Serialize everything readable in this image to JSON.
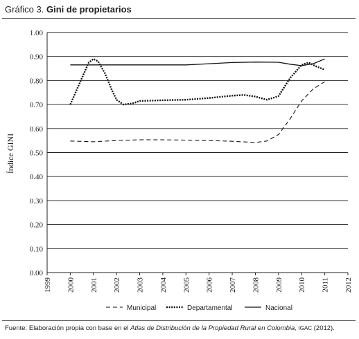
{
  "header": {
    "prefix": "Gráfico 3.",
    "title": "Gini de propietarios"
  },
  "footer": {
    "source_prefix": "Fuente: Elaboración propia con base en el",
    "source_atlas": "Atlas de Distribución de la Propiedad Rural en Colombia,",
    "source_igac": "IGAC",
    "source_suffix": "(2012)."
  },
  "chart_data": {
    "type": "line",
    "title": "Gini de propietarios",
    "xlabel": "",
    "ylabel": "Índice GINI",
    "xlim": [
      1999,
      2012
    ],
    "ylim": [
      0,
      1
    ],
    "xticks": [
      "1999",
      "2000",
      "2001",
      "2002",
      "2003",
      "2004",
      "2005",
      "2006",
      "2007",
      "2008",
      "2009",
      "2010",
      "2011",
      "2012"
    ],
    "yticks": [
      "0.00",
      "0.10",
      "0.20",
      "0.30",
      "0.40",
      "0.50",
      "0.60",
      "0.70",
      "0.80",
      "0.90",
      "1.00"
    ],
    "grid": "horizontal",
    "legend_position": "bottom",
    "series": [
      {
        "name": "Municipal",
        "style": "dashed",
        "x": [
          2000,
          2001,
          2002,
          2003,
          2004,
          2005,
          2006,
          2007,
          2008,
          2008.5,
          2009,
          2009.5,
          2010,
          2010.5,
          2011
        ],
        "y": [
          0.548,
          0.545,
          0.55,
          0.553,
          0.553,
          0.552,
          0.55,
          0.547,
          0.542,
          0.548,
          0.575,
          0.64,
          0.715,
          0.765,
          0.795
        ]
      },
      {
        "name": "Departamental",
        "style": "dotted",
        "x": [
          2000,
          2000.5,
          2000.8,
          2001,
          2001.2,
          2001.5,
          2001.8,
          2002,
          2002.3,
          2002.7,
          2003,
          2004,
          2005,
          2006,
          2007,
          2007.5,
          2008,
          2008.5,
          2009,
          2009.5,
          2010,
          2010.3,
          2010.6,
          2011
        ],
        "y": [
          0.7,
          0.81,
          0.875,
          0.89,
          0.88,
          0.83,
          0.76,
          0.72,
          0.7,
          0.705,
          0.715,
          0.718,
          0.72,
          0.727,
          0.737,
          0.74,
          0.733,
          0.72,
          0.735,
          0.81,
          0.865,
          0.875,
          0.86,
          0.845
        ]
      },
      {
        "name": "Nacional",
        "style": "solid",
        "x": [
          2000,
          2001,
          2002,
          2003,
          2004,
          2005,
          2006,
          2007,
          2008,
          2009,
          2009.5,
          2010,
          2010.5,
          2011
        ],
        "y": [
          0.865,
          0.865,
          0.865,
          0.865,
          0.865,
          0.865,
          0.87,
          0.875,
          0.877,
          0.876,
          0.868,
          0.862,
          0.87,
          0.89
        ]
      }
    ]
  }
}
